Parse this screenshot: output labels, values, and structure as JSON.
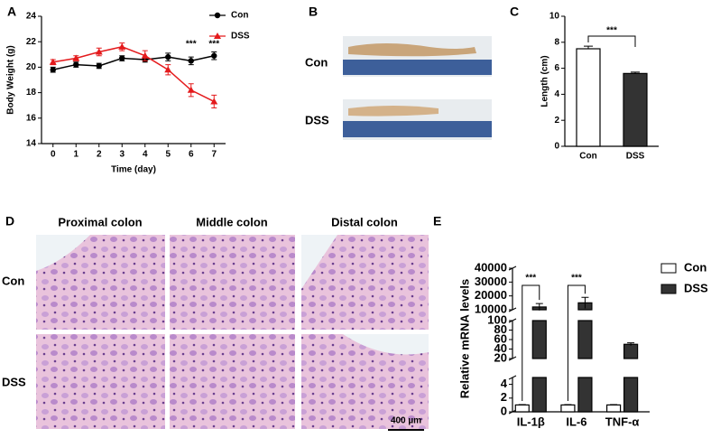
{
  "chart_data": [
    {
      "type": "line",
      "panel_label": "A",
      "xlabel": "Time (day)",
      "ylabel": "Body Weight (g)",
      "x": [
        0,
        1,
        2,
        3,
        4,
        5,
        6,
        7
      ],
      "xlim": [
        -0.5,
        7.5
      ],
      "xticks": [
        0,
        1,
        2,
        3,
        4,
        5,
        6,
        7
      ],
      "ylim": [
        14,
        24
      ],
      "yticks": [
        14,
        16,
        18,
        20,
        22,
        24
      ],
      "series": [
        {
          "name": "Con",
          "color": "#000000",
          "marker": "circle",
          "values": [
            19.8,
            20.2,
            20.1,
            20.7,
            20.6,
            20.8,
            20.5,
            20.9
          ],
          "errors": [
            0.2,
            0.2,
            0.2,
            0.2,
            0.2,
            0.3,
            0.3,
            0.3
          ]
        },
        {
          "name": "DSS",
          "color": "#e41a1c",
          "marker": "triangle",
          "values": [
            20.4,
            20.7,
            21.2,
            21.6,
            20.9,
            19.8,
            18.2,
            17.3
          ],
          "errors": [
            0.2,
            0.2,
            0.3,
            0.3,
            0.4,
            0.4,
            0.5,
            0.5
          ]
        }
      ],
      "significance": [
        null,
        null,
        null,
        null,
        null,
        null,
        "***",
        "***"
      ]
    },
    {
      "type": "bar",
      "panel_label": "C",
      "ylabel": "Length (cm)",
      "categories": [
        "Con",
        "DSS"
      ],
      "values": [
        7.5,
        5.6
      ],
      "errors": [
        0.2,
        0.1
      ],
      "colors": [
        "#ffffff",
        "#333333"
      ],
      "ylim": [
        0,
        10
      ],
      "yticks": [
        0,
        2,
        4,
        6,
        8,
        10
      ],
      "significance": "***"
    },
    {
      "type": "broken_bar",
      "panel_label": "E",
      "ylabel": "Relative mRNA levels",
      "categories": [
        "IL-1β",
        "IL-6",
        "TNF-α"
      ],
      "segments": [
        {
          "ylim": [
            0,
            5
          ],
          "yticks": [
            0,
            2,
            4
          ]
        },
        {
          "ylim": [
            20,
            100
          ],
          "yticks": [
            20,
            40,
            60,
            80,
            100
          ]
        },
        {
          "ylim": [
            10000,
            40000
          ],
          "yticks": [
            10000,
            20000,
            30000,
            40000
          ]
        }
      ],
      "series": [
        {
          "name": "Con",
          "color": "#ffffff",
          "values": [
            1,
            1,
            1
          ],
          "errors": [
            0.05,
            0.05,
            0.05
          ]
        },
        {
          "name": "DSS",
          "color": "#333333",
          "values": [
            12000,
            15000,
            50
          ],
          "errors": [
            2500,
            4000,
            3
          ]
        }
      ],
      "significance": [
        "***",
        "***",
        null
      ]
    }
  ],
  "panel_b": {
    "label": "B",
    "rows": [
      "Con",
      "DSS"
    ]
  },
  "panel_d": {
    "label": "D",
    "columns": [
      "Proximal colon",
      "Middle colon",
      "Distal colon"
    ],
    "rows": [
      "Con",
      "DSS"
    ],
    "scale_bar": "400 µm"
  }
}
